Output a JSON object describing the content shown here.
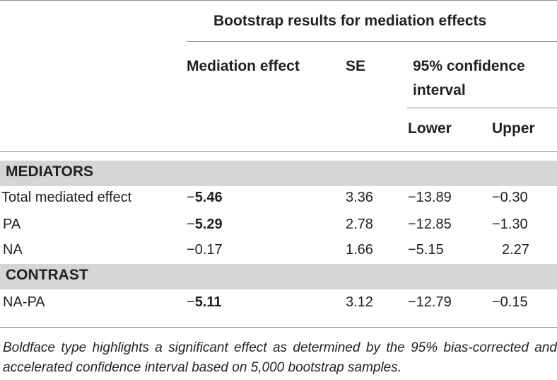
{
  "table": {
    "caption": "Bootstrap results for mediation effects",
    "columns": {
      "mediation_effect": "Mediation effect",
      "se": "SE",
      "ci": "95% confidence",
      "ci_line2": "interval",
      "lower": "Lower",
      "upper": "Upper"
    },
    "sections": {
      "mediators": "MEDIATORS",
      "contrast": "CONTRAST"
    },
    "rows": [
      {
        "label": "Total mediated effect",
        "sign": "−",
        "effect": "5.46",
        "bold": true,
        "se": "3.36",
        "lower": "−13.89",
        "upper": "−0.30"
      },
      {
        "label": "PA",
        "sign": "−",
        "effect": "5.29",
        "bold": true,
        "se": "2.78",
        "lower": "−12.85",
        "upper": "−1.30"
      },
      {
        "label": "NA",
        "sign": "",
        "effect": "−0.17",
        "bold": false,
        "se": "1.66",
        "lower": "−5.15",
        "upper": "2.27"
      },
      {
        "label": "NA-PA",
        "sign": "−",
        "effect": "5.11",
        "bold": true,
        "se": "3.12",
        "lower": "−12.79",
        "upper": "−0.15"
      }
    ],
    "footnote": "Boldface type highlights a significant effect as determined by the 95% bias-corrected and accelerated confidence interval based on 5,000 bootstrap samples."
  }
}
